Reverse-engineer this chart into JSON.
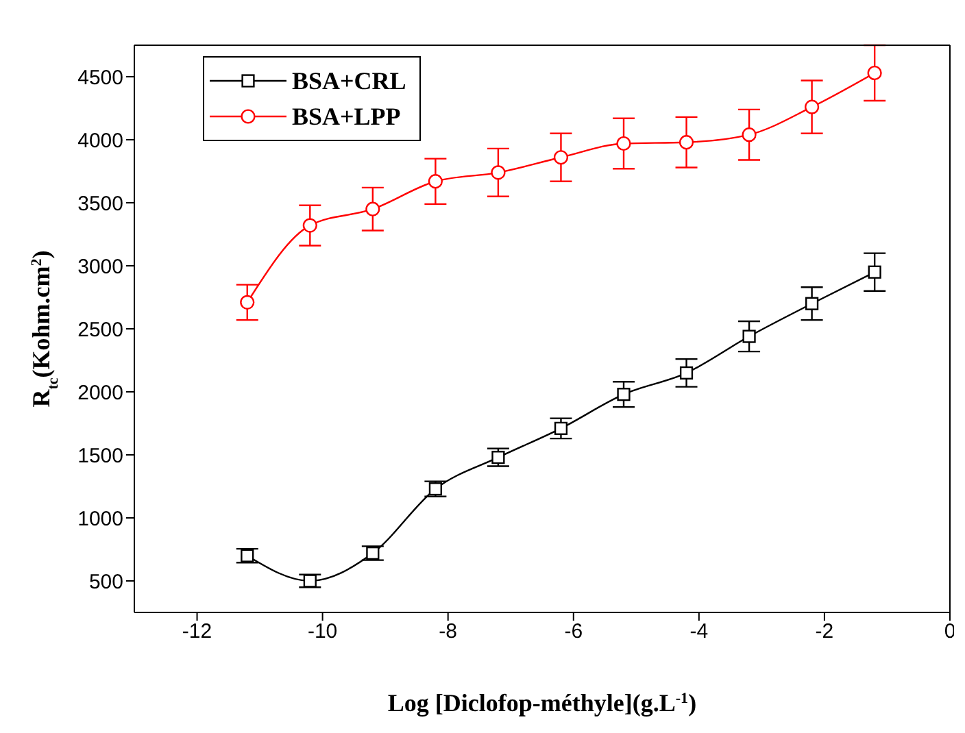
{
  "chart_data": {
    "type": "line",
    "xlabel": "Log [Diclofop-méthyle](g.L$^{-1}$)",
    "ylabel": "R$_{tc}$(Kohm.cm$^{2}$)",
    "x": [
      -11.2,
      -10.2,
      -9.2,
      -8.2,
      -7.2,
      -6.2,
      -5.2,
      -4.2,
      -3.2,
      -2.2,
      -1.2
    ],
    "series": [
      {
        "name": "BSA+CRL",
        "color": "#000000",
        "marker": "square",
        "values": [
          700,
          500,
          720,
          1230,
          1480,
          1710,
          1980,
          2150,
          2440,
          2700,
          2950
        ],
        "errors": [
          55,
          50,
          55,
          60,
          70,
          80,
          100,
          110,
          120,
          130,
          150
        ]
      },
      {
        "name": "BSA+LPP",
        "color": "#ff0000",
        "marker": "circle",
        "values": [
          2710,
          3320,
          3450,
          3670,
          3740,
          3860,
          3970,
          3980,
          4040,
          4260,
          4530
        ],
        "errors": [
          140,
          160,
          170,
          180,
          190,
          190,
          200,
          200,
          200,
          210,
          220
        ]
      }
    ],
    "xlim": [
      -13,
      0
    ],
    "xticks": [
      -12,
      -10,
      -8,
      -6,
      -4,
      -2,
      0
    ],
    "ylim": [
      250,
      4750
    ],
    "yticks": [
      500,
      1000,
      1500,
      2000,
      2500,
      3000,
      3500,
      4000,
      4500
    ],
    "grid": false,
    "legend": "top left",
    "line_style": "solid"
  }
}
